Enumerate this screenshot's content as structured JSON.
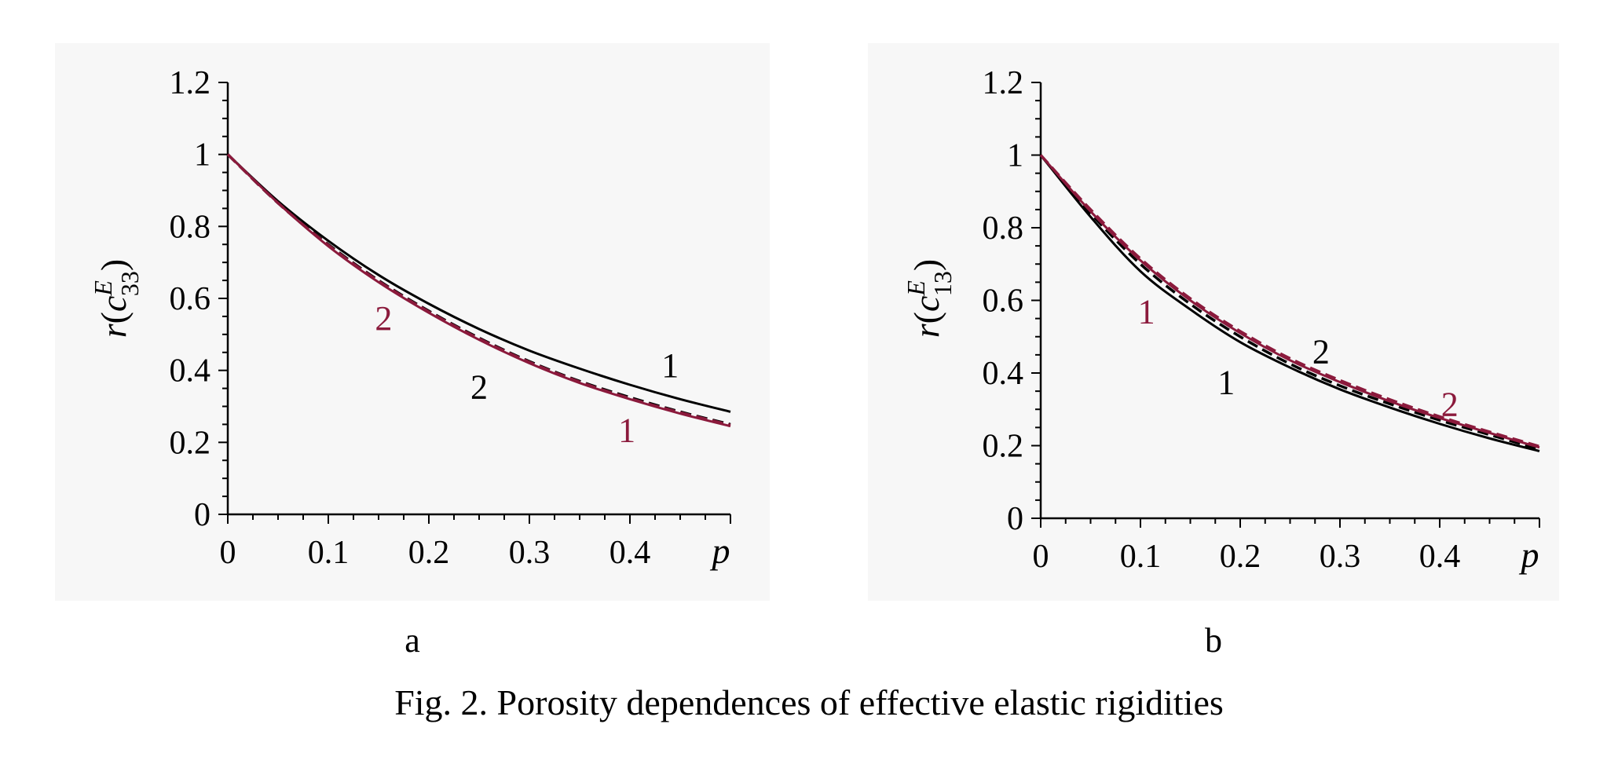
{
  "caption": "Fig. 2. Porosity dependences of effective elastic rigidities",
  "colors": {
    "black": "#000000",
    "crimson": "#8b1a3c"
  },
  "chart_data": [
    {
      "type": "line",
      "panel_label": "a",
      "x_var": "p",
      "ylabel": {
        "prefix": "r",
        "paren_open": "(",
        "symbol": "c",
        "superscript": "E",
        "subscript": "33",
        "paren_close": ")"
      },
      "xlim": [
        0,
        0.5
      ],
      "ylim": [
        0,
        1.2
      ],
      "x_ticks": [
        0,
        0.1,
        0.2,
        0.3,
        0.4
      ],
      "x_tick_labels": [
        "0",
        "0.1",
        "0.2",
        "0.3",
        "0.4"
      ],
      "y_ticks": [
        0,
        0.2,
        0.4,
        0.6,
        0.8,
        1.0,
        1.2
      ],
      "y_tick_labels": [
        "0",
        "0.2",
        "0.4",
        "0.6",
        "0.8",
        "1",
        "1.2"
      ],
      "series": [
        {
          "color": "black",
          "dash": "solid",
          "x": [
            0,
            0.05,
            0.1,
            0.15,
            0.2,
            0.25,
            0.3,
            0.35,
            0.4,
            0.45,
            0.5
          ],
          "y": [
            1.0,
            0.87,
            0.76,
            0.665,
            0.585,
            0.515,
            0.455,
            0.405,
            0.36,
            0.32,
            0.285
          ]
        },
        {
          "color": "black",
          "dash": "dashed",
          "x": [
            0,
            0.05,
            0.1,
            0.15,
            0.2,
            0.25,
            0.3,
            0.35,
            0.4,
            0.45,
            0.5
          ],
          "y": [
            1.0,
            0.865,
            0.75,
            0.65,
            0.565,
            0.49,
            0.425,
            0.37,
            0.325,
            0.285,
            0.25
          ]
        },
        {
          "color": "crimson",
          "dash": "solid",
          "x": [
            0,
            0.05,
            0.1,
            0.15,
            0.2,
            0.25,
            0.3,
            0.35,
            0.4,
            0.45,
            0.5
          ],
          "y": [
            1.0,
            0.865,
            0.745,
            0.645,
            0.56,
            0.485,
            0.42,
            0.365,
            0.32,
            0.28,
            0.245
          ]
        },
        {
          "color": "crimson",
          "dash": "dashed",
          "x": [
            0,
            0.05,
            0.1,
            0.15,
            0.2,
            0.25,
            0.3,
            0.35,
            0.4,
            0.45,
            0.5
          ],
          "y": [
            1.0,
            0.865,
            0.748,
            0.648,
            0.563,
            0.488,
            0.423,
            0.368,
            0.322,
            0.283,
            0.248
          ]
        }
      ],
      "annotations": [
        {
          "text": "1",
          "color": "black",
          "x": 0.44,
          "y": 0.415
        },
        {
          "text": "2",
          "color": "black",
          "x": 0.25,
          "y": 0.355
        },
        {
          "text": "2",
          "color": "crimson",
          "x": 0.155,
          "y": 0.545
        },
        {
          "text": "1",
          "color": "crimson",
          "x": 0.397,
          "y": 0.235
        }
      ]
    },
    {
      "type": "line",
      "panel_label": "b",
      "x_var": "p",
      "ylabel": {
        "prefix": "r",
        "paren_open": "(",
        "symbol": "c",
        "superscript": "E",
        "subscript": "13",
        "paren_close": ")"
      },
      "xlim": [
        0,
        0.5
      ],
      "ylim": [
        0,
        1.2
      ],
      "x_ticks": [
        0,
        0.1,
        0.2,
        0.3,
        0.4
      ],
      "x_tick_labels": [
        "0",
        "0.1",
        "0.2",
        "0.3",
        "0.4"
      ],
      "y_ticks": [
        0,
        0.2,
        0.4,
        0.6,
        0.8,
        1.0,
        1.2
      ],
      "y_tick_labels": [
        "0",
        "0.2",
        "0.4",
        "0.6",
        "0.8",
        "1",
        "1.2"
      ],
      "series": [
        {
          "color": "black",
          "dash": "solid",
          "x": [
            0,
            0.05,
            0.1,
            0.15,
            0.2,
            0.25,
            0.3,
            0.35,
            0.4,
            0.45,
            0.5
          ],
          "y": [
            1.0,
            0.83,
            0.68,
            0.575,
            0.485,
            0.415,
            0.355,
            0.305,
            0.26,
            0.22,
            0.185
          ]
        },
        {
          "color": "black",
          "dash": "dashed",
          "x": [
            0,
            0.05,
            0.1,
            0.15,
            0.2,
            0.25,
            0.3,
            0.35,
            0.4,
            0.45,
            0.5
          ],
          "y": [
            1.0,
            0.84,
            0.7,
            0.59,
            0.5,
            0.425,
            0.365,
            0.315,
            0.27,
            0.23,
            0.19
          ]
        },
        {
          "color": "crimson",
          "dash": "solid",
          "x": [
            0,
            0.05,
            0.1,
            0.15,
            0.2,
            0.25,
            0.3,
            0.35,
            0.4,
            0.45,
            0.5
          ],
          "y": [
            1.0,
            0.845,
            0.71,
            0.6,
            0.51,
            0.435,
            0.375,
            0.322,
            0.276,
            0.235,
            0.195
          ]
        },
        {
          "color": "crimson",
          "dash": "dashed",
          "x": [
            0,
            0.05,
            0.1,
            0.15,
            0.2,
            0.25,
            0.3,
            0.35,
            0.4,
            0.45,
            0.5
          ],
          "y": [
            1.0,
            0.85,
            0.715,
            0.605,
            0.515,
            0.44,
            0.38,
            0.327,
            0.28,
            0.238,
            0.198
          ]
        }
      ],
      "annotations": [
        {
          "text": "1",
          "color": "crimson",
          "x": 0.106,
          "y": 0.57
        },
        {
          "text": "2",
          "color": "black",
          "x": 0.281,
          "y": 0.46
        },
        {
          "text": "1",
          "color": "black",
          "x": 0.186,
          "y": 0.375
        },
        {
          "text": "2",
          "color": "crimson",
          "x": 0.41,
          "y": 0.315
        }
      ]
    }
  ]
}
